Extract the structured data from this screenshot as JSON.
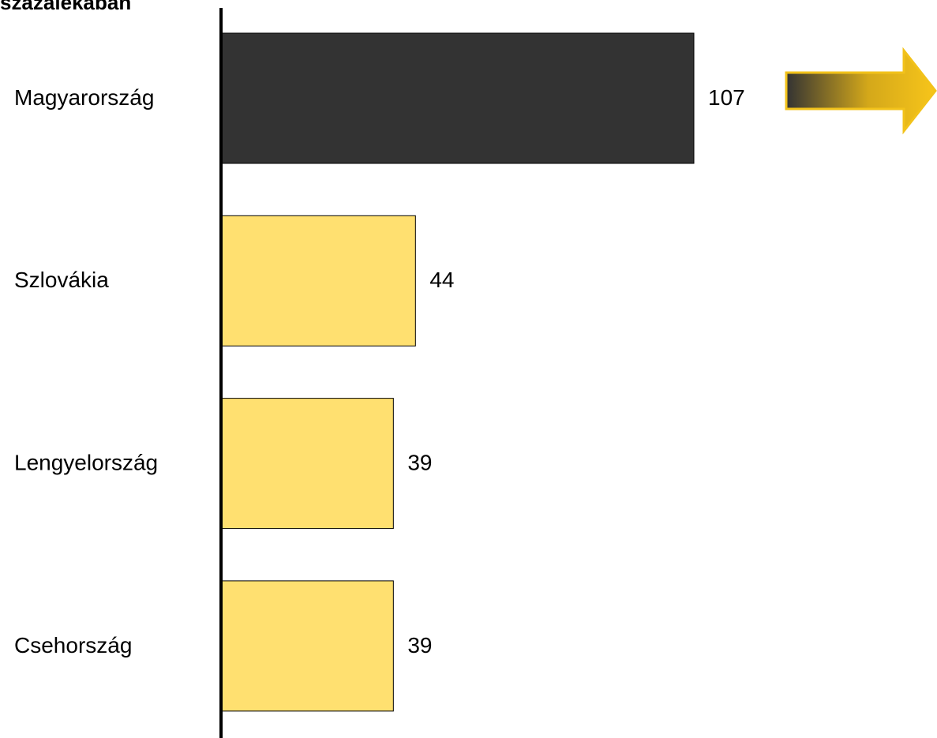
{
  "chart_data": {
    "type": "bar",
    "orientation": "horizontal",
    "title": "százalékában",
    "categories": [
      "Magyarország",
      "Szlovákia",
      "Lengyelország",
      "Csehország"
    ],
    "values": [
      107,
      44,
      39,
      39
    ],
    "colors": [
      "#333333",
      "#ffe070",
      "#ffe070",
      "#ffe070"
    ]
  }
}
